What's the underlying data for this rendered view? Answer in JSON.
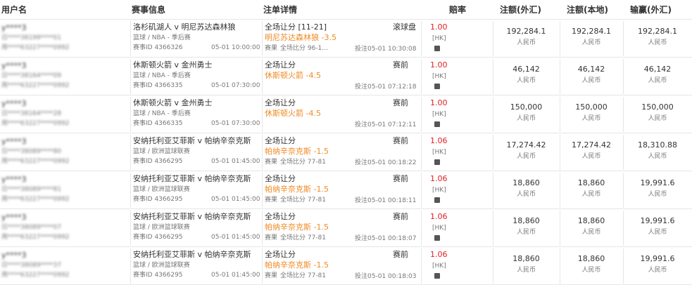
{
  "table": {
    "headers": [
      "用户名",
      "赛事信息",
      "注单详情",
      "赔率",
      "注额(外汇)",
      "注额(本地)",
      "输赢(外汇)"
    ],
    "rows": [
      {
        "user": [
          "y****3",
          "日****38199****01",
          "用****63227****0992"
        ],
        "event": [
          "洛杉矶湖人 v 明尼苏达森林狼",
          "篮球 / NBA - 季后赛",
          "赛事ID 4366326",
          "05-01 10:00:00"
        ],
        "bet": {
          "market": "全场让分 [11-21]",
          "mode": "滚球盘",
          "selection": "明尼苏达森林狼 -3.5",
          "result": [
            "赛果",
            "全场比分 96-1..."
          ],
          "placed": "投注05-01 10:30:08"
        },
        "odds": [
          "1.00",
          "[HK]"
        ],
        "amounts": [
          [
            "192,284.1",
            "人民币"
          ],
          [
            "192,284.1",
            "人民币"
          ],
          [
            "192,284.1",
            "人民币"
          ]
        ]
      },
      {
        "user": [
          "y****3",
          "日****38164****09",
          "用****63227****0992"
        ],
        "event": [
          "休斯顿火箭 v 金州勇士",
          "篮球 / NBA - 季后赛",
          "赛事ID 4366335",
          "05-01 07:30:00"
        ],
        "bet": {
          "market": "全场让分",
          "mode": "赛前",
          "selection": "休斯顿火箭 -4.5",
          "placed": "投注05-01 07:12:18"
        },
        "odds": [
          "1.00",
          "[HK]"
        ],
        "amounts": [
          [
            "46,142",
            "人民币"
          ],
          [
            "46,142",
            "人民币"
          ],
          [
            "46,142",
            "人民币"
          ]
        ]
      },
      {
        "user": [
          "y****3",
          "日****38164****28",
          "用****63227****0992"
        ],
        "event": [
          "休斯顿火箭 v 金州勇士",
          "篮球 / NBA - 季后赛",
          "赛事ID 4366335",
          "05-01 07:30:00"
        ],
        "bet": {
          "market": "全场让分",
          "mode": "赛前",
          "selection": "休斯顿火箭 -4.5",
          "placed": "投注05-01 07:12:11"
        },
        "odds": [
          "1.00",
          "[HK]"
        ],
        "amounts": [
          [
            "150,000",
            "人民币"
          ],
          [
            "150,000",
            "人民币"
          ],
          [
            "150,000",
            "人民币"
          ]
        ]
      },
      {
        "user": [
          "y****3",
          "日****38089****80",
          "用****63227****0992"
        ],
        "event": [
          "安纳托利亚艾菲斯 v 帕纳辛奈克斯",
          "篮球 / 欧洲篮球联赛",
          "赛事ID 4366295",
          "05-01 01:45:00"
        ],
        "bet": {
          "market": "全场让分",
          "mode": "赛前",
          "selection": "帕纳辛奈克斯 -1.5",
          "result": [
            "赛果",
            "全场比分 77-81"
          ],
          "placed": "投注05-01 00:18:22"
        },
        "odds": [
          "1.06",
          "[HK]"
        ],
        "amounts": [
          [
            "17,274.42",
            "人民币"
          ],
          [
            "17,274.42",
            "人民币"
          ],
          [
            "18,310.88",
            "人民币"
          ]
        ]
      },
      {
        "user": [
          "y****3",
          "日****38089****81",
          "用****63227****0992"
        ],
        "event": [
          "安纳托利亚艾菲斯 v 帕纳辛奈克斯",
          "篮球 / 欧洲篮球联赛",
          "赛事ID 4366295",
          "05-01 01:45:00"
        ],
        "bet": {
          "market": "全场让分",
          "mode": "赛前",
          "selection": "帕纳辛奈克斯 -1.5",
          "result": [
            "赛果",
            "全场比分 77-81"
          ],
          "placed": "投注05-01 00:18:11"
        },
        "odds": [
          "1.06",
          "[HK]"
        ],
        "amounts": [
          [
            "18,860",
            "人民币"
          ],
          [
            "18,860",
            "人民币"
          ],
          [
            "19,991.6",
            "人民币"
          ]
        ]
      },
      {
        "user": [
          "y****3",
          "日****38089****07",
          "用****63227****0992"
        ],
        "event": [
          "安纳托利亚艾菲斯 v 帕纳辛奈克斯",
          "篮球 / 欧洲篮球联赛",
          "赛事ID 4366295",
          "05-01 01:45:00"
        ],
        "bet": {
          "market": "全场让分",
          "mode": "赛前",
          "selection": "帕纳辛奈克斯 -1.5",
          "result": [
            "赛果",
            "全场比分 77-81"
          ],
          "placed": "投注05-01 00:18:07"
        },
        "odds": [
          "1.06",
          "[HK]"
        ],
        "amounts": [
          [
            "18,860",
            "人民币"
          ],
          [
            "18,860",
            "人民币"
          ],
          [
            "19,991.6",
            "人民币"
          ]
        ]
      },
      {
        "user": [
          "y****3",
          "日****38089****37",
          "用****63227****0992"
        ],
        "event": [
          "安纳托利亚艾菲斯 v 帕纳辛奈克斯",
          "篮球 / 欧洲篮球联赛",
          "赛事ID 4366295",
          "05-01 01:45:00"
        ],
        "bet": {
          "market": "全场让分",
          "mode": "赛前",
          "selection": "帕纳辛奈克斯 -1.5",
          "result": [
            "赛果",
            "全场比分 77-81"
          ],
          "placed": "投注05-01 00:18:03"
        },
        "odds": [
          "1.06",
          "[HK]"
        ],
        "amounts": [
          [
            "18,860",
            "人民币"
          ],
          [
            "18,860",
            "人民币"
          ],
          [
            "19,991.6",
            "人民币"
          ]
        ]
      }
    ]
  }
}
